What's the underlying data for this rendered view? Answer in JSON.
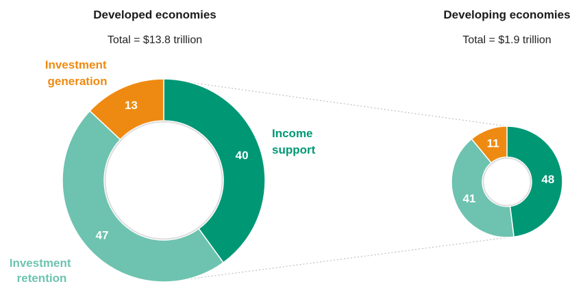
{
  "colors": {
    "income_support": "#009774",
    "investment_retention": "#6DC3AF",
    "investment_generation": "#EE8A11",
    "connector": "#bdbdbd"
  },
  "chart_data": {
    "type": "pie",
    "variant": "donut",
    "categories": [
      "Income support",
      "Investment retention",
      "Investment generation"
    ],
    "panels": [
      {
        "title": "Developed economies",
        "subtitle": "Total = $13.8 trillion",
        "values": [
          40,
          47,
          13
        ],
        "value_labels": [
          "40",
          "47",
          "13"
        ]
      },
      {
        "title": "Developing economies",
        "subtitle": "Total = $1.9 trillion",
        "values": [
          48,
          41,
          11
        ],
        "value_labels": [
          "48",
          "41",
          "11"
        ]
      }
    ],
    "legend": {
      "placement": "direct-labels",
      "labels": {
        "income_support": [
          "Income",
          "support"
        ],
        "investment_retention": [
          "Investment",
          "retention"
        ],
        "investment_generation": [
          "Investment",
          "generation"
        ]
      }
    }
  }
}
